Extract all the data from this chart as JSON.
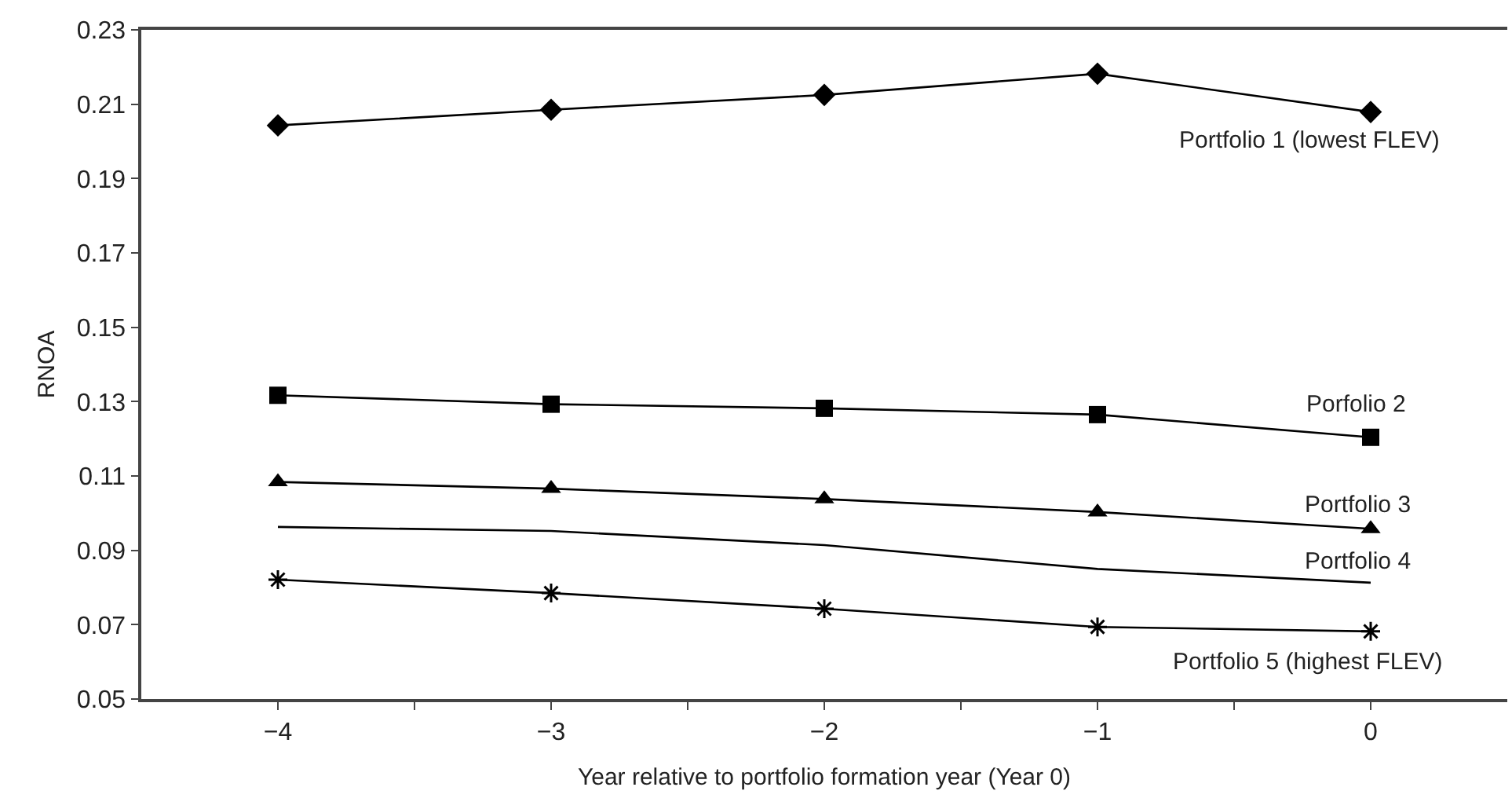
{
  "chart_data": {
    "type": "line",
    "xlabel": "Year relative to portfolio formation year (Year 0)",
    "ylabel": "RNOA",
    "x": [
      -4,
      -3,
      -2,
      -1,
      0
    ],
    "xlim": [
      -4.5,
      0.5
    ],
    "xticks": [
      {
        "value": -4,
        "label": "−4"
      },
      {
        "value": -3.5,
        "label": null
      },
      {
        "value": -3,
        "label": "−3"
      },
      {
        "value": -2.5,
        "label": null
      },
      {
        "value": -2,
        "label": "−2"
      },
      {
        "value": -1.5,
        "label": null
      },
      {
        "value": -1,
        "label": "−1"
      },
      {
        "value": -0.5,
        "label": null
      },
      0
    ],
    "ylim": [
      0.05,
      0.23
    ],
    "yticks": [
      0.05,
      0.07,
      0.09,
      0.11,
      0.13,
      0.15,
      0.17,
      0.19,
      0.21,
      0.23
    ],
    "legend": false,
    "line_style": "solid",
    "series": [
      {
        "name": "Portfolio 1 (lowest FLEV)",
        "color": "#000000",
        "marker": "diamond",
        "values": [
          0.2043,
          0.2085,
          0.2125,
          0.2182,
          0.2079
        ]
      },
      {
        "name": "Porfolio 2",
        "color": "#000000",
        "marker": "square",
        "values": [
          0.1317,
          0.1293,
          0.1282,
          0.1265,
          0.1204
        ]
      },
      {
        "name": "Portfolio 3",
        "color": "#000000",
        "marker": "triangle",
        "values": [
          0.1084,
          0.1066,
          0.1038,
          0.1003,
          0.0958
        ]
      },
      {
        "name": "Portfolio 4",
        "color": "#000000",
        "marker": "none",
        "values": [
          0.0963,
          0.0952,
          0.0914,
          0.085,
          0.0813
        ]
      },
      {
        "name": "Portfolio 5 (highest FLEV)",
        "color": "#000000",
        "marker": "cross",
        "values": [
          0.0821,
          0.0785,
          0.0743,
          0.0694,
          0.0682
        ]
      }
    ]
  }
}
